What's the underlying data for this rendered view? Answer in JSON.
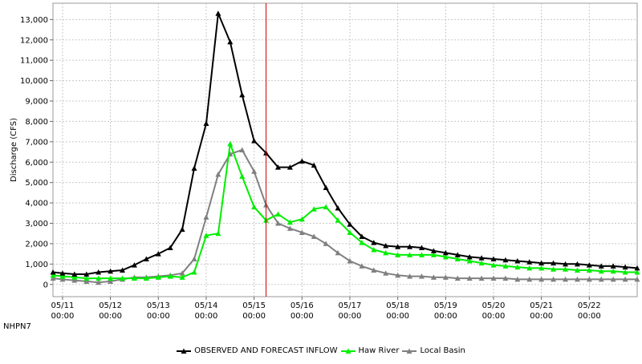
{
  "station_id": "NHPN7",
  "chart_data": {
    "type": "line",
    "ylabel": "Discharge (CFS)",
    "xlabel": "",
    "title": "",
    "xlim": [
      10.8,
      23.0
    ],
    "ylim": [
      -600,
      13800
    ],
    "yticks": [
      0,
      1000,
      2000,
      3000,
      4000,
      5000,
      6000,
      7000,
      8000,
      9000,
      10000,
      11000,
      12000,
      13000
    ],
    "ytick_labels": [
      "0",
      "1,000",
      "2,000",
      "3,000",
      "4,000",
      "5,000",
      "6,000",
      "7,000",
      "8,000",
      "9,000",
      "10,000",
      "11,000",
      "12,000",
      "13,000"
    ],
    "xticks": [
      11,
      12,
      13,
      14,
      15,
      16,
      17,
      18,
      19,
      20,
      21,
      22
    ],
    "xtick_labels": [
      [
        "05/11",
        "00:00"
      ],
      [
        "05/12",
        "00:00"
      ],
      [
        "05/13",
        "00:00"
      ],
      [
        "05/14",
        "00:00"
      ],
      [
        "05/15",
        "00:00"
      ],
      [
        "05/16",
        "00:00"
      ],
      [
        "05/17",
        "00:00"
      ],
      [
        "05/18",
        "00:00"
      ],
      [
        "05/19",
        "00:00"
      ],
      [
        "05/20",
        "00:00"
      ],
      [
        "05/21",
        "00:00"
      ],
      [
        "05/22",
        "00:00"
      ]
    ],
    "grid": true,
    "legend_position": "bottom-center",
    "forecast_line_x": 15.25,
    "forecast_line_color": "#cc0000",
    "x": [
      10.8,
      11.0,
      11.25,
      11.5,
      11.75,
      12.0,
      12.25,
      12.5,
      12.75,
      13.0,
      13.25,
      13.5,
      13.75,
      14.0,
      14.25,
      14.5,
      14.75,
      15.0,
      15.25,
      15.5,
      15.75,
      16.0,
      16.25,
      16.5,
      16.75,
      17.0,
      17.25,
      17.5,
      17.75,
      18.0,
      18.25,
      18.5,
      18.75,
      19.0,
      19.25,
      19.5,
      19.75,
      20.0,
      20.25,
      20.5,
      20.75,
      21.0,
      21.25,
      21.5,
      21.75,
      22.0,
      22.25,
      22.5,
      22.75,
      23.0
    ],
    "series": [
      {
        "name": "OBSERVED AND FORECAST INFLOW",
        "color": "#000000",
        "values": [
          600,
          550,
          500,
          500,
          600,
          650,
          700,
          950,
          1250,
          1500,
          1800,
          2700,
          5700,
          7900,
          13300,
          11900,
          9300,
          7050,
          6450,
          5750,
          5750,
          6050,
          5850,
          4750,
          3750,
          2950,
          2350,
          2050,
          1900,
          1850,
          1850,
          1800,
          1650,
          1550,
          1450,
          1350,
          1300,
          1250,
          1200,
          1150,
          1100,
          1050,
          1050,
          1000,
          1000,
          950,
          900,
          900,
          850,
          800
        ]
      },
      {
        "name": "Haw River",
        "color": "#00ee00",
        "values": [
          450,
          400,
          350,
          300,
          300,
          300,
          300,
          300,
          300,
          350,
          400,
          350,
          600,
          2400,
          2500,
          6900,
          5300,
          3800,
          3150,
          3450,
          3050,
          3200,
          3700,
          3800,
          3150,
          2550,
          2050,
          1700,
          1550,
          1450,
          1450,
          1450,
          1450,
          1350,
          1250,
          1150,
          1050,
          950,
          900,
          850,
          800,
          800,
          750,
          750,
          700,
          700,
          650,
          650,
          600,
          600
        ]
      },
      {
        "name": "Local Basin",
        "color": "#808080",
        "values": [
          300,
          250,
          200,
          150,
          100,
          150,
          250,
          350,
          350,
          400,
          450,
          550,
          1250,
          3300,
          5400,
          6400,
          6600,
          5550,
          3900,
          3000,
          2750,
          2550,
          2350,
          2000,
          1550,
          1150,
          900,
          700,
          550,
          450,
          400,
          400,
          350,
          350,
          300,
          300,
          300,
          300,
          300,
          250,
          250,
          250,
          250,
          250,
          250,
          250,
          250,
          250,
          250,
          250
        ]
      }
    ]
  }
}
